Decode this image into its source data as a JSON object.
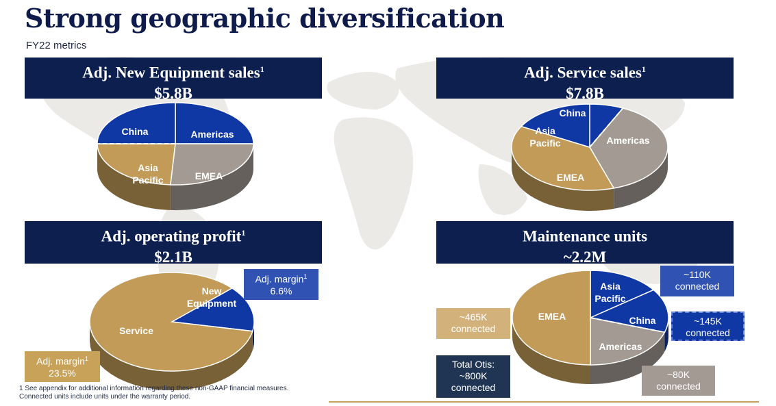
{
  "title": "Strong geographic diversification",
  "subtitle": "FY22 metrics",
  "panels": [
    {
      "title": "Adj. New Equipment sales",
      "title_sup": "1",
      "value": "$5.8B"
    },
    {
      "title": "Adj. Service sales",
      "title_sup": "1",
      "value": "$7.8B"
    },
    {
      "title": "Adj. operating profit",
      "title_sup": "1",
      "value": "$2.1B"
    },
    {
      "title": "Maintenance units",
      "title_sup": "",
      "value": "~2.2M"
    }
  ],
  "chart_data": [
    {
      "type": "pie",
      "title": "Adj. New Equipment sales $5.8B",
      "categories": [
        "China",
        "Americas",
        "EMEA",
        "Asia Pacific"
      ],
      "values": [
        25,
        26,
        24,
        25
      ]
    },
    {
      "type": "pie",
      "title": "Adj. Service sales $7.8B",
      "categories": [
        "China",
        "Americas",
        "EMEA",
        "Asia Pacific"
      ],
      "values": [
        7,
        38,
        38,
        17
      ]
    },
    {
      "type": "pie",
      "title": "Adj. operating profit $2.1B",
      "categories": [
        "New Equipment",
        "Service"
      ],
      "values": [
        15,
        85
      ]
    },
    {
      "type": "pie",
      "title": "Maintenance units ~2.2M",
      "categories": [
        "Asia Pacific",
        "China",
        "Americas",
        "EMEA"
      ],
      "values": [
        15,
        15,
        20,
        50
      ]
    }
  ],
  "annotations": {
    "ne_margin_label": "Adj. margin",
    "ne_margin_value": "6.6%",
    "svc_margin_label": "Adj. margin",
    "svc_margin_value": "23.5%",
    "sup": "1",
    "apac_connected": "~110K connected",
    "china_connected": "~145K connected",
    "emea_connected": "~465K connected",
    "americas_connected": "~80K connected",
    "total_otis": "Total Otis: ~800K connected"
  },
  "footnote": {
    "line1": "1 See appendix for additional information regarding these non-GAAP financial measures.",
    "line2": "Connected units include units under the warranty period."
  },
  "colors": {
    "navy": "#0c1f4f",
    "blue": "#0f38a5",
    "gold": "#c29b58",
    "gray": "#a39b93",
    "map": "#eceae7",
    "accent_line": "#c9a25a"
  }
}
